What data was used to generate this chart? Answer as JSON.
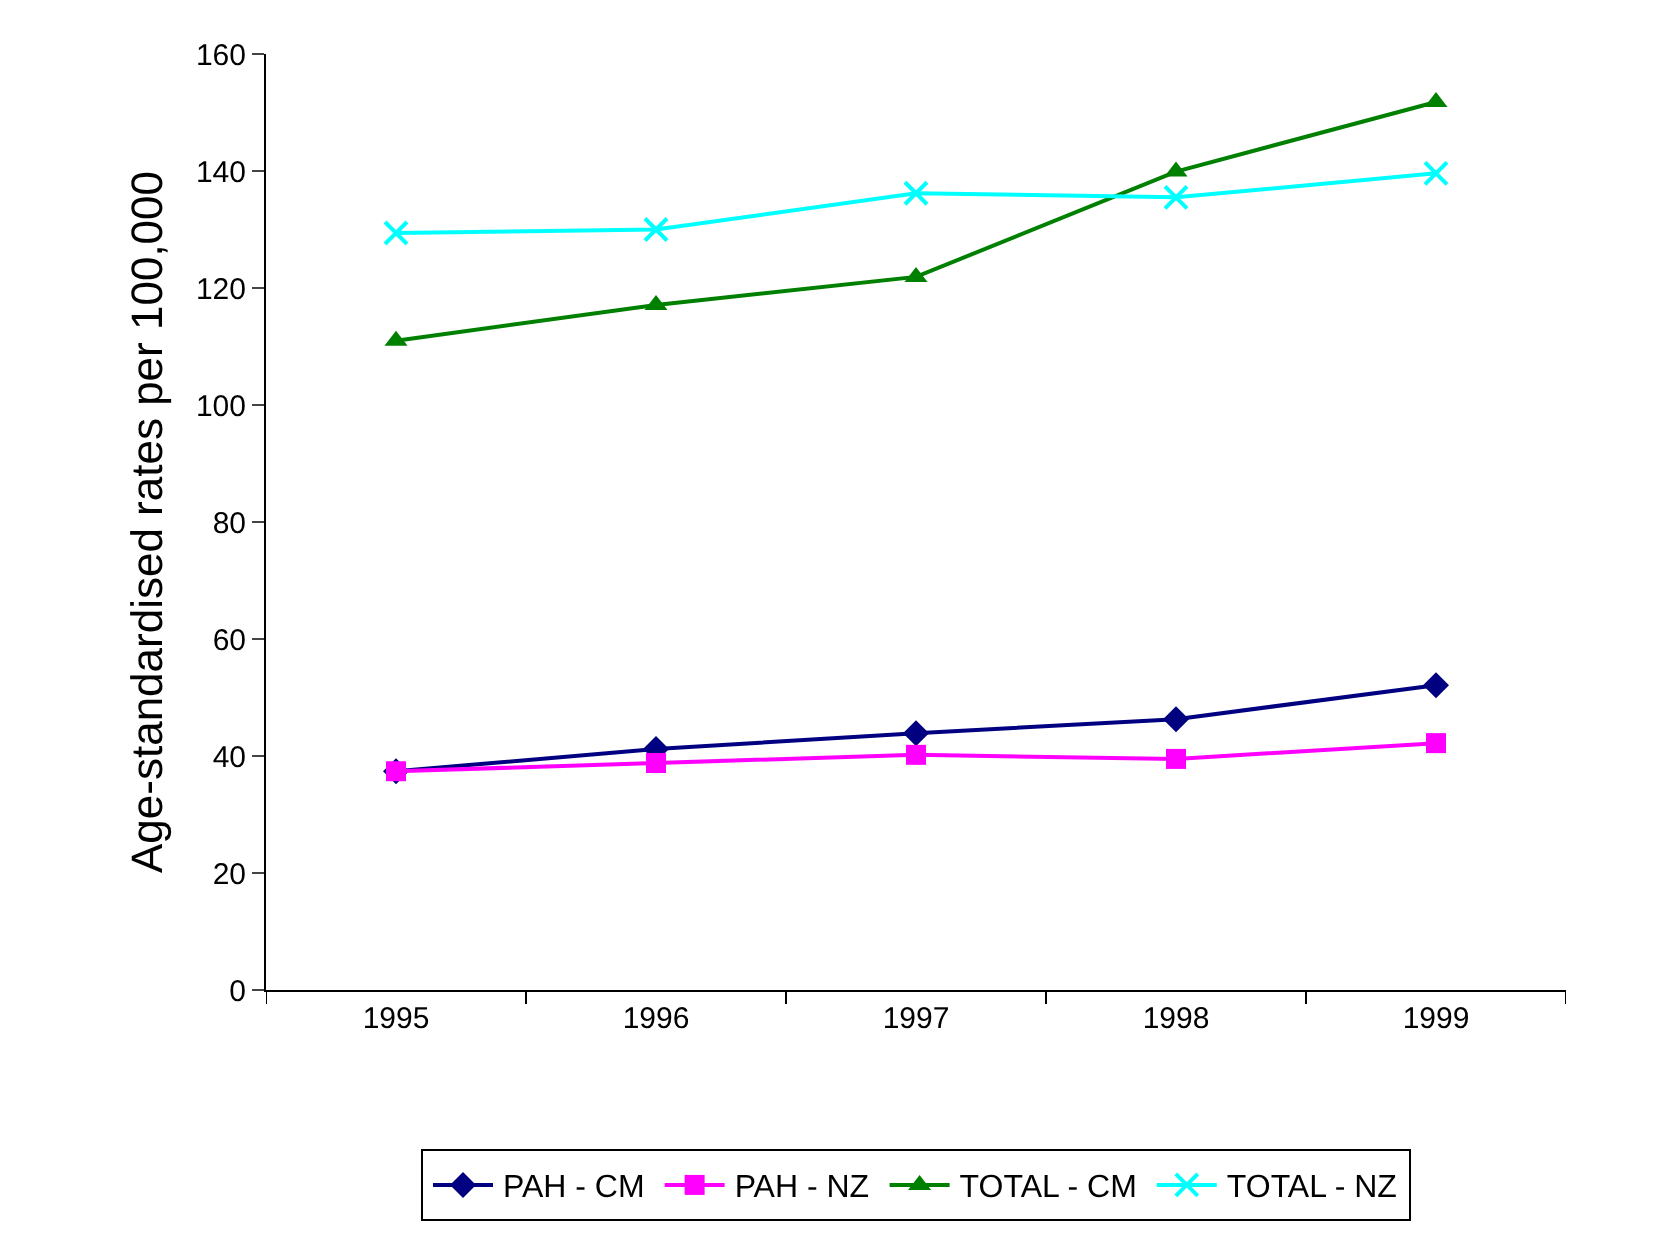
{
  "chart_data": {
    "type": "line",
    "ylabel": "Age-standardised rates per 100,000",
    "categories": [
      "1995",
      "1996",
      "1997",
      "1998",
      "1999"
    ],
    "ylim": [
      0,
      160
    ],
    "yticks": [
      0,
      20,
      40,
      60,
      80,
      100,
      120,
      140,
      160
    ],
    "legend": "bottom",
    "series": [
      {
        "name": "PAH - CM",
        "color": "#000080",
        "marker": "diamond",
        "values": [
          37.4,
          41.2,
          43.9,
          46.3,
          52.1
        ]
      },
      {
        "name": "PAH - NZ",
        "color": "#ff00ff",
        "marker": "square",
        "values": [
          37.4,
          38.8,
          40.2,
          39.5,
          42.2
        ]
      },
      {
        "name": "TOTAL - CM",
        "color": "#008000",
        "marker": "triangle",
        "values": [
          111,
          117.1,
          121.9,
          139.9,
          151.8
        ]
      },
      {
        "name": "TOTAL - NZ",
        "color": "#00ffff",
        "marker": "cross",
        "values": [
          129.4,
          130,
          136.2,
          135.5,
          139.6
        ]
      }
    ]
  }
}
